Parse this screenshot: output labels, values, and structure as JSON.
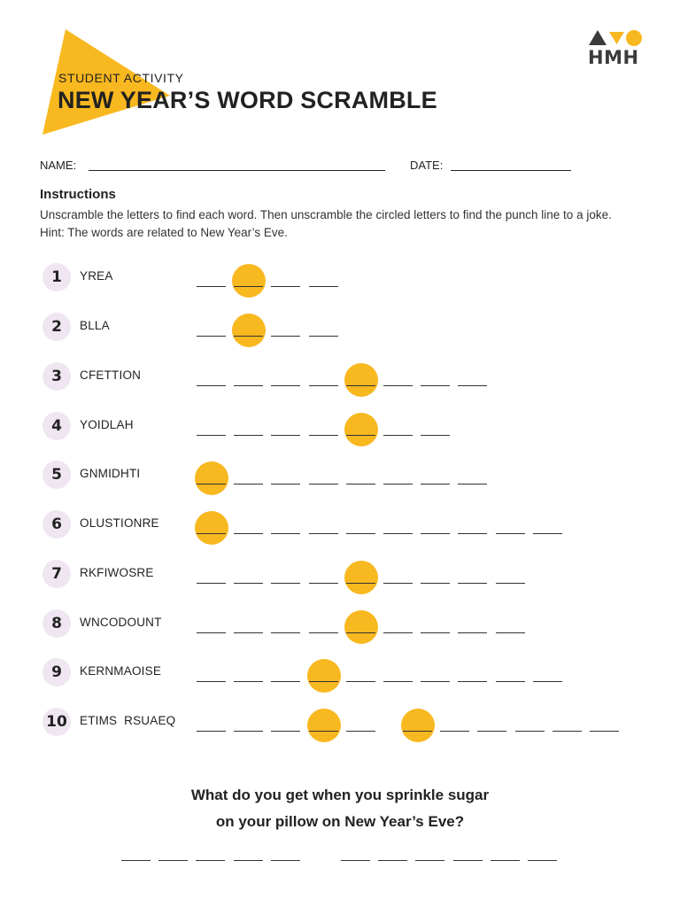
{
  "header": {
    "eyebrow": "STUDENT ACTIVITY",
    "title": "NEW YEAR’S WORD SCRAMBLE",
    "logo_text": "HMH"
  },
  "colors": {
    "accent": "#f8b81f",
    "badge": "#efe6f2",
    "logo_dark": "#3b3b3b"
  },
  "form": {
    "name_label": "NAME:",
    "date_label": "DATE:"
  },
  "instructions": {
    "heading": "Instructions",
    "body": "Unscramble the letters to find each word. Then unscramble the circled letters to find the punch line to a joke. Hint: The words are related to New Year’s Eve."
  },
  "puzzles": [
    {
      "number": "1",
      "scrambled": "YREA",
      "blanks": 4,
      "circled": [
        2
      ]
    },
    {
      "number": "2",
      "scrambled": "BLLA",
      "blanks": 4,
      "circled": [
        2
      ]
    },
    {
      "number": "3",
      "scrambled": "CFETTION",
      "blanks": 8,
      "circled": [
        5
      ]
    },
    {
      "number": "4",
      "scrambled": "YOIDLAH",
      "blanks": 7,
      "circled": [
        5
      ]
    },
    {
      "number": "5",
      "scrambled": "GNMIDHTI",
      "blanks": 8,
      "circled": [
        1
      ]
    },
    {
      "number": "6",
      "scrambled": "OLUSTIONRE",
      "blanks": 10,
      "circled": [
        1
      ]
    },
    {
      "number": "7",
      "scrambled": "RKFIWOSRE",
      "blanks": 9,
      "circled": [
        5
      ]
    },
    {
      "number": "8",
      "scrambled": "WNCODOUNT",
      "blanks": 9,
      "circled": [
        5
      ]
    },
    {
      "number": "9",
      "scrambled": "KERNMAOISE",
      "blanks": 10,
      "circled": [
        4
      ]
    },
    {
      "number": "10",
      "scrambled": "ETIMS  RSUAEQ",
      "blanks": 11,
      "circled": [
        4,
        6
      ]
    }
  ],
  "riddle": {
    "line1": "What do you get when you sprinkle sugar",
    "line2": "on your pillow on New Year’s Eve?",
    "answer_words": [
      5,
      6
    ]
  }
}
